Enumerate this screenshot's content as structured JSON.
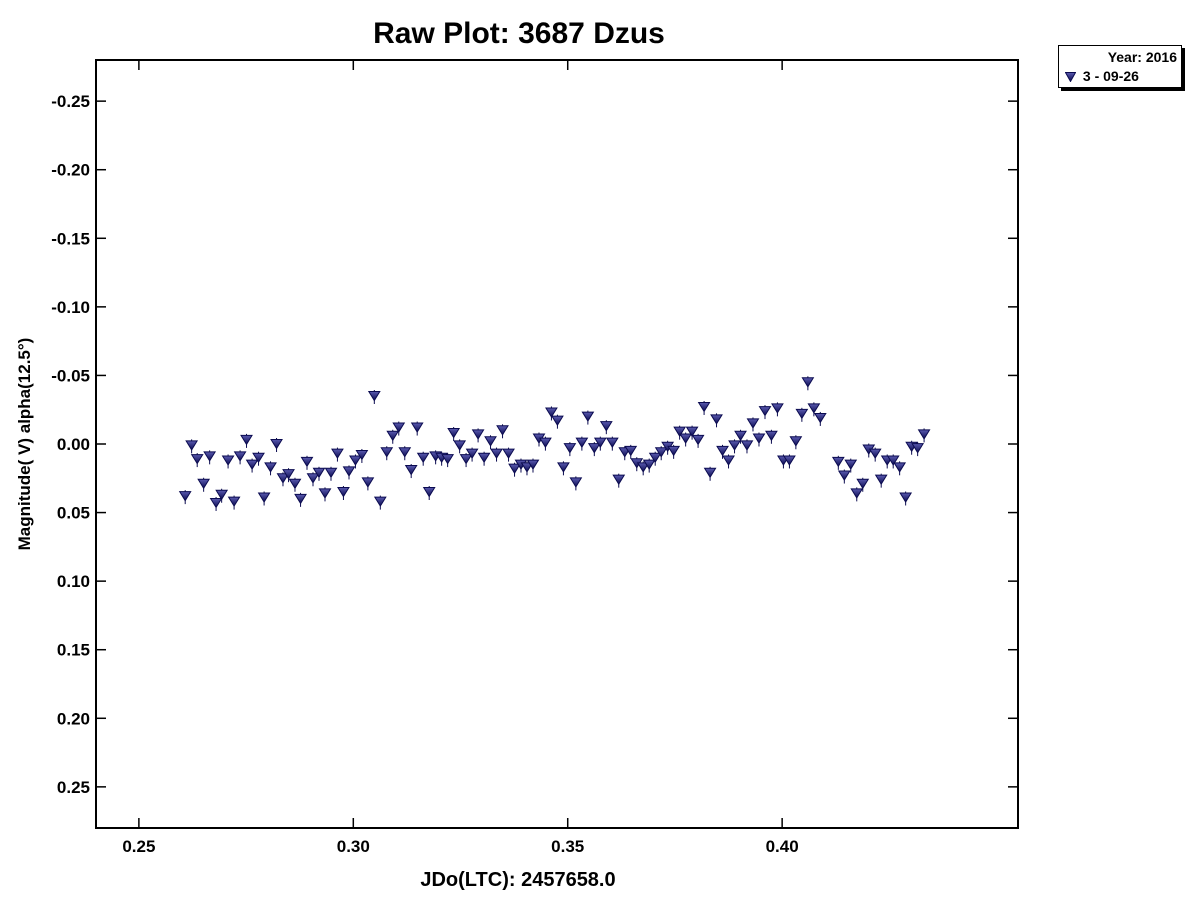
{
  "chart_data": {
    "type": "scatter",
    "title": "Raw Plot: 3687 Dzus",
    "xlabel": "JDo(LTC): 2457658.0",
    "ylabel": "Magnitude( V) alpha(12.5°)",
    "xlim": [
      0.24,
      0.455
    ],
    "ylim": [
      0.28,
      -0.28
    ],
    "y_inverted": true,
    "xticks": [
      0.25,
      0.3,
      0.35,
      0.4
    ],
    "xtick_labels": [
      "0.25",
      "0.30",
      "0.35",
      "0.40"
    ],
    "yticks": [
      -0.25,
      -0.2,
      -0.15,
      -0.1,
      -0.05,
      0.0,
      0.05,
      0.1,
      0.15,
      0.2,
      0.25
    ],
    "ytick_labels": [
      "-0.25",
      "-0.20",
      "-0.15",
      "-0.10",
      "-0.05",
      "0.00",
      "0.05",
      "0.10",
      "0.15",
      "0.20",
      "0.25"
    ],
    "grid": false,
    "legend_position": "top-right outside",
    "legend": {
      "title": "Year: 2016",
      "entries": [
        {
          "marker": "down-triangle",
          "label": "3 - 09-26"
        }
      ]
    },
    "series": [
      {
        "name": "3 - 09-26",
        "color": "#191970",
        "marker": "down-triangle",
        "points": [
          [
            0.2608,
            0.038
          ],
          [
            0.2623,
            0.001
          ],
          [
            0.2636,
            0.011
          ],
          [
            0.2651,
            0.029
          ],
          [
            0.2665,
            0.009
          ],
          [
            0.268,
            0.043
          ],
          [
            0.2693,
            0.037
          ],
          [
            0.2708,
            0.012
          ],
          [
            0.2722,
            0.042
          ],
          [
            0.2736,
            0.009
          ],
          [
            0.2751,
            -0.003
          ],
          [
            0.2764,
            0.015
          ],
          [
            0.2779,
            0.01
          ],
          [
            0.2792,
            0.039
          ],
          [
            0.2807,
            0.017
          ],
          [
            0.2821,
            0.0
          ],
          [
            0.2836,
            0.025
          ],
          [
            0.2849,
            0.022
          ],
          [
            0.2864,
            0.029
          ],
          [
            0.2877,
            0.04
          ],
          [
            0.2892,
            0.013
          ],
          [
            0.2906,
            0.025
          ],
          [
            0.292,
            0.021
          ],
          [
            0.2934,
            0.036
          ],
          [
            0.2948,
            0.021
          ],
          [
            0.2963,
            0.007
          ],
          [
            0.2977,
            0.035
          ],
          [
            0.299,
            0.02
          ],
          [
            0.3005,
            0.012
          ],
          [
            0.302,
            0.008
          ],
          [
            0.3034,
            0.028
          ],
          [
            0.3049,
            -0.035
          ],
          [
            0.3063,
            0.042
          ],
          [
            0.3078,
            0.006
          ],
          [
            0.3092,
            -0.006
          ],
          [
            0.3106,
            -0.012
          ],
          [
            0.312,
            0.006
          ],
          [
            0.3135,
            0.019
          ],
          [
            0.3149,
            -0.012
          ],
          [
            0.3163,
            0.01
          ],
          [
            0.3177,
            0.035
          ],
          [
            0.3192,
            0.009
          ],
          [
            0.3206,
            0.01
          ],
          [
            0.322,
            0.011
          ],
          [
            0.3234,
            -0.008
          ],
          [
            0.3248,
            0.001
          ],
          [
            0.3263,
            0.011
          ],
          [
            0.3277,
            0.007
          ],
          [
            0.3291,
            -0.007
          ],
          [
            0.3305,
            0.01
          ],
          [
            0.332,
            -0.002
          ],
          [
            0.3334,
            0.007
          ],
          [
            0.3348,
            -0.01
          ],
          [
            0.3362,
            0.007
          ],
          [
            0.3376,
            0.018
          ],
          [
            0.3391,
            0.015
          ],
          [
            0.3405,
            0.017
          ],
          [
            0.3419,
            0.015
          ],
          [
            0.3433,
            -0.004
          ],
          [
            0.3448,
            -0.001
          ],
          [
            0.3462,
            -0.023
          ],
          [
            0.3476,
            -0.017
          ],
          [
            0.349,
            0.017
          ],
          [
            0.3505,
            0.003
          ],
          [
            0.3519,
            0.028
          ],
          [
            0.3533,
            -0.001
          ],
          [
            0.3547,
            -0.02
          ],
          [
            0.3562,
            0.003
          ],
          [
            0.3576,
            -0.001
          ],
          [
            0.359,
            -0.013
          ],
          [
            0.3604,
            -0.001
          ],
          [
            0.3619,
            0.026
          ],
          [
            0.3633,
            0.006
          ],
          [
            0.3647,
            0.005
          ],
          [
            0.3661,
            0.014
          ],
          [
            0.3676,
            0.017
          ],
          [
            0.369,
            0.015
          ],
          [
            0.3704,
            0.01
          ],
          [
            0.3718,
            0.006
          ],
          [
            0.3733,
            0.002
          ],
          [
            0.3747,
            0.005
          ],
          [
            0.3761,
            -0.009
          ],
          [
            0.3775,
            -0.004
          ],
          [
            0.379,
            -0.009
          ],
          [
            0.3804,
            -0.003
          ],
          [
            0.3818,
            -0.027
          ],
          [
            0.3832,
            0.021
          ],
          [
            0.3847,
            -0.018
          ],
          [
            0.3861,
            0.005
          ],
          [
            0.3875,
            0.012
          ],
          [
            0.3889,
            0.001
          ],
          [
            0.3903,
            -0.006
          ],
          [
            0.3918,
            0.001
          ],
          [
            0.3932,
            -0.015
          ],
          [
            0.3946,
            -0.004
          ],
          [
            0.396,
            -0.024
          ],
          [
            0.3975,
            -0.006
          ],
          [
            0.3989,
            -0.026
          ],
          [
            0.4003,
            0.012
          ],
          [
            0.4017,
            0.012
          ],
          [
            0.4032,
            -0.002
          ],
          [
            0.4046,
            -0.022
          ],
          [
            0.406,
            -0.045
          ],
          [
            0.4074,
            -0.026
          ],
          [
            0.4089,
            -0.019
          ],
          [
            0.4131,
            0.013
          ],
          [
            0.4145,
            0.023
          ],
          [
            0.416,
            0.015
          ],
          [
            0.4174,
            0.036
          ],
          [
            0.4188,
            0.029
          ],
          [
            0.4202,
            0.004
          ],
          [
            0.4217,
            0.007
          ],
          [
            0.4231,
            0.026
          ],
          [
            0.4245,
            0.012
          ],
          [
            0.4259,
            0.012
          ],
          [
            0.4274,
            0.017
          ],
          [
            0.4288,
            0.039
          ],
          [
            0.4302,
            0.002
          ],
          [
            0.4316,
            0.003
          ],
          [
            0.4331,
            -0.007
          ]
        ]
      }
    ]
  }
}
